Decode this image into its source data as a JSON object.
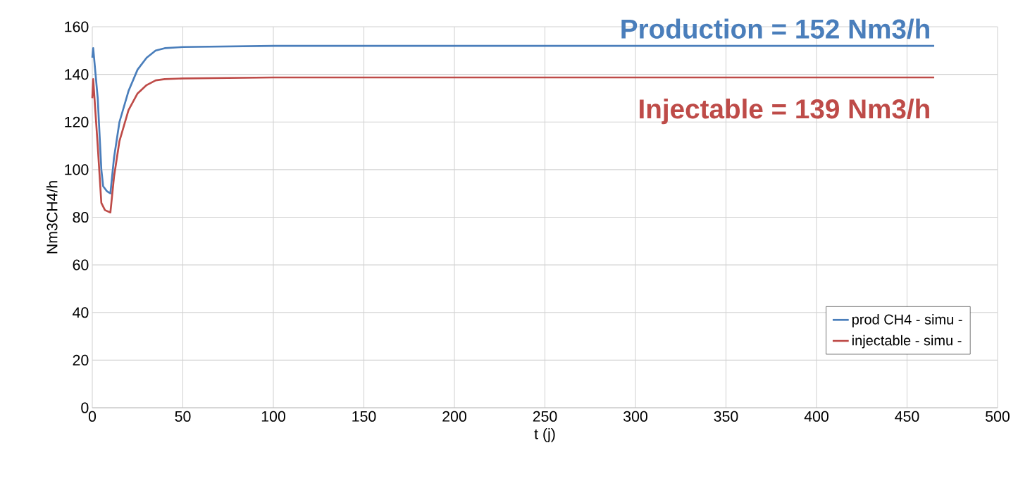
{
  "chart_data": {
    "type": "line",
    "xlabel": "t (j)",
    "ylabel": "Nm3CH4/h",
    "annotations": [
      "Production = 152 Nm3/h",
      "Injectable = 139 Nm3/h"
    ],
    "xlim": [
      0,
      500
    ],
    "ylim": [
      0,
      160
    ],
    "xticks": [
      0,
      50,
      100,
      150,
      200,
      250,
      300,
      350,
      400,
      450,
      500
    ],
    "yticks": [
      0,
      20,
      40,
      60,
      80,
      100,
      120,
      140,
      160
    ],
    "grid": true,
    "legend": "bottom right",
    "marker": "none",
    "line_style": "solid",
    "series": [
      {
        "name": "prod CH4 - simu -",
        "color": "#4a7ebb",
        "x": [
          0,
          0.5,
          3,
          5,
          6,
          8,
          10,
          12,
          15,
          20,
          25,
          30,
          35,
          40,
          50,
          100,
          200,
          300,
          465
        ],
        "values": [
          147,
          151,
          130,
          100,
          93,
          91,
          90,
          105,
          120,
          133,
          142,
          147,
          150,
          151,
          151.5,
          152,
          152,
          152,
          152
        ]
      },
      {
        "name": "injectable - simu -",
        "color": "#be4b48",
        "x": [
          0,
          0.5,
          3,
          5,
          7,
          10,
          12,
          15,
          20,
          25,
          30,
          35,
          40,
          50,
          100,
          200,
          300,
          465
        ],
        "values": [
          130,
          138,
          110,
          86,
          83,
          82,
          97,
          112,
          125,
          132,
          135.5,
          137.5,
          138,
          138.3,
          138.7,
          138.7,
          138.7,
          138.7
        ]
      }
    ]
  }
}
